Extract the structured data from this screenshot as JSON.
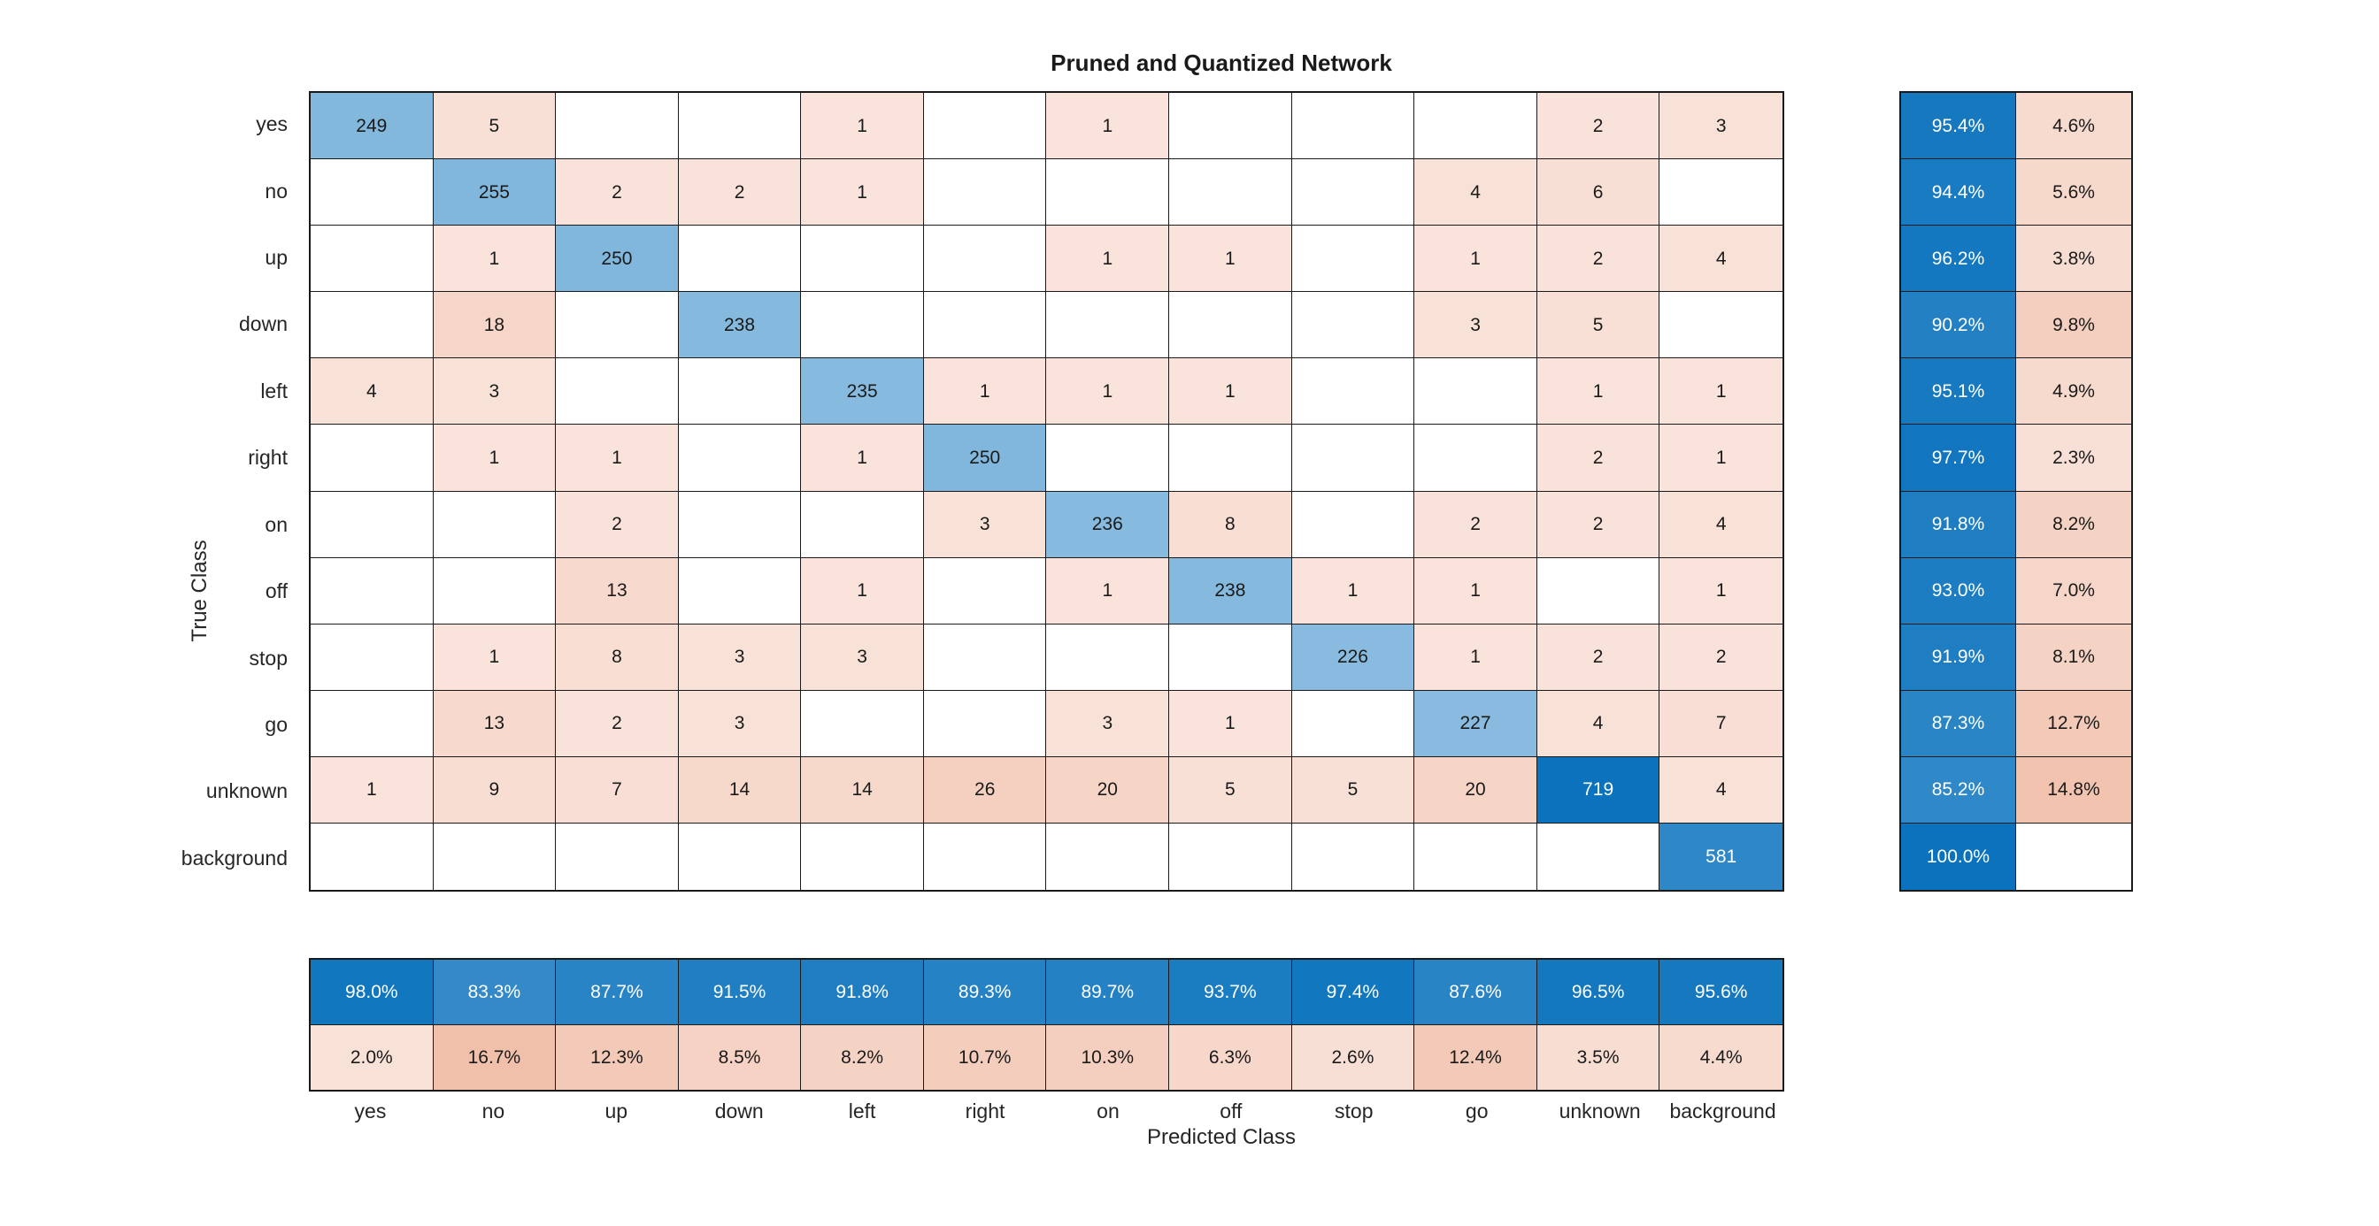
{
  "chart_data": {
    "type": "heatmap",
    "title": "Pruned and Quantized Network",
    "xlabel": "Predicted Class",
    "ylabel": "True Class",
    "classes": [
      "yes",
      "no",
      "up",
      "down",
      "left",
      "right",
      "on",
      "off",
      "stop",
      "go",
      "unknown",
      "background"
    ],
    "matrix": [
      [
        249,
        5,
        0,
        0,
        1,
        0,
        1,
        0,
        0,
        0,
        2,
        3
      ],
      [
        0,
        255,
        2,
        2,
        1,
        0,
        0,
        0,
        0,
        4,
        6,
        0
      ],
      [
        0,
        1,
        250,
        0,
        0,
        0,
        1,
        1,
        0,
        1,
        2,
        4
      ],
      [
        0,
        18,
        0,
        238,
        0,
        0,
        0,
        0,
        0,
        3,
        5,
        0
      ],
      [
        4,
        3,
        0,
        0,
        235,
        1,
        1,
        1,
        0,
        0,
        1,
        1
      ],
      [
        0,
        1,
        1,
        0,
        1,
        250,
        0,
        0,
        0,
        0,
        2,
        1
      ],
      [
        0,
        0,
        2,
        0,
        0,
        3,
        236,
        8,
        0,
        2,
        2,
        4
      ],
      [
        0,
        0,
        13,
        0,
        1,
        0,
        1,
        238,
        1,
        1,
        0,
        1
      ],
      [
        0,
        1,
        8,
        3,
        3,
        0,
        0,
        0,
        226,
        1,
        2,
        2
      ],
      [
        0,
        13,
        2,
        3,
        0,
        0,
        3,
        1,
        0,
        227,
        4,
        7
      ],
      [
        1,
        9,
        7,
        14,
        14,
        26,
        20,
        5,
        5,
        20,
        719,
        4
      ],
      [
        0,
        0,
        0,
        0,
        0,
        0,
        0,
        0,
        0,
        0,
        0,
        581
      ]
    ],
    "row_summary": {
      "correct": [
        95.4,
        94.4,
        96.2,
        90.2,
        95.1,
        97.7,
        91.8,
        93.0,
        91.9,
        87.3,
        85.2,
        100.0
      ],
      "incorrect": [
        4.6,
        5.6,
        3.8,
        9.8,
        4.9,
        2.3,
        8.2,
        7.0,
        8.1,
        12.7,
        14.8,
        null
      ]
    },
    "column_summary": {
      "correct": [
        98.0,
        83.3,
        87.7,
        91.5,
        91.8,
        89.3,
        89.7,
        93.7,
        97.4,
        87.6,
        96.5,
        95.6
      ],
      "incorrect": [
        2.0,
        16.7,
        12.3,
        8.5,
        8.2,
        10.7,
        10.3,
        6.3,
        2.6,
        12.4,
        3.5,
        4.4
      ]
    },
    "colors": {
      "diagonal_blue": "#0b73bd",
      "offdiagonal_red": "#d95319",
      "grid_line": "#1a1a1a",
      "text_dark": "#1a1a1a",
      "text_light": "#ffffff",
      "empty_cell": "#ffffff"
    }
  }
}
